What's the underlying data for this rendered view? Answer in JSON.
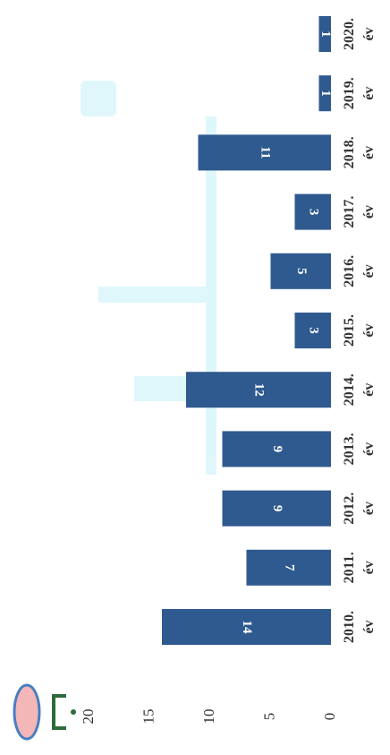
{
  "chart_data": {
    "type": "bar",
    "categories": [
      "2010. év",
      "2011. év",
      "2012. év",
      "2013. év",
      "2014. év",
      "2015. év",
      "2016. év",
      "2017. év",
      "2018. év",
      "2019. év",
      "2020. év"
    ],
    "values": [
      14,
      7,
      9,
      9,
      12,
      3,
      5,
      3,
      11,
      1,
      1
    ],
    "color": "#2f5a8f",
    "ylim": [
      0,
      20
    ],
    "yticks": [
      0,
      5,
      10,
      15,
      20
    ]
  }
}
